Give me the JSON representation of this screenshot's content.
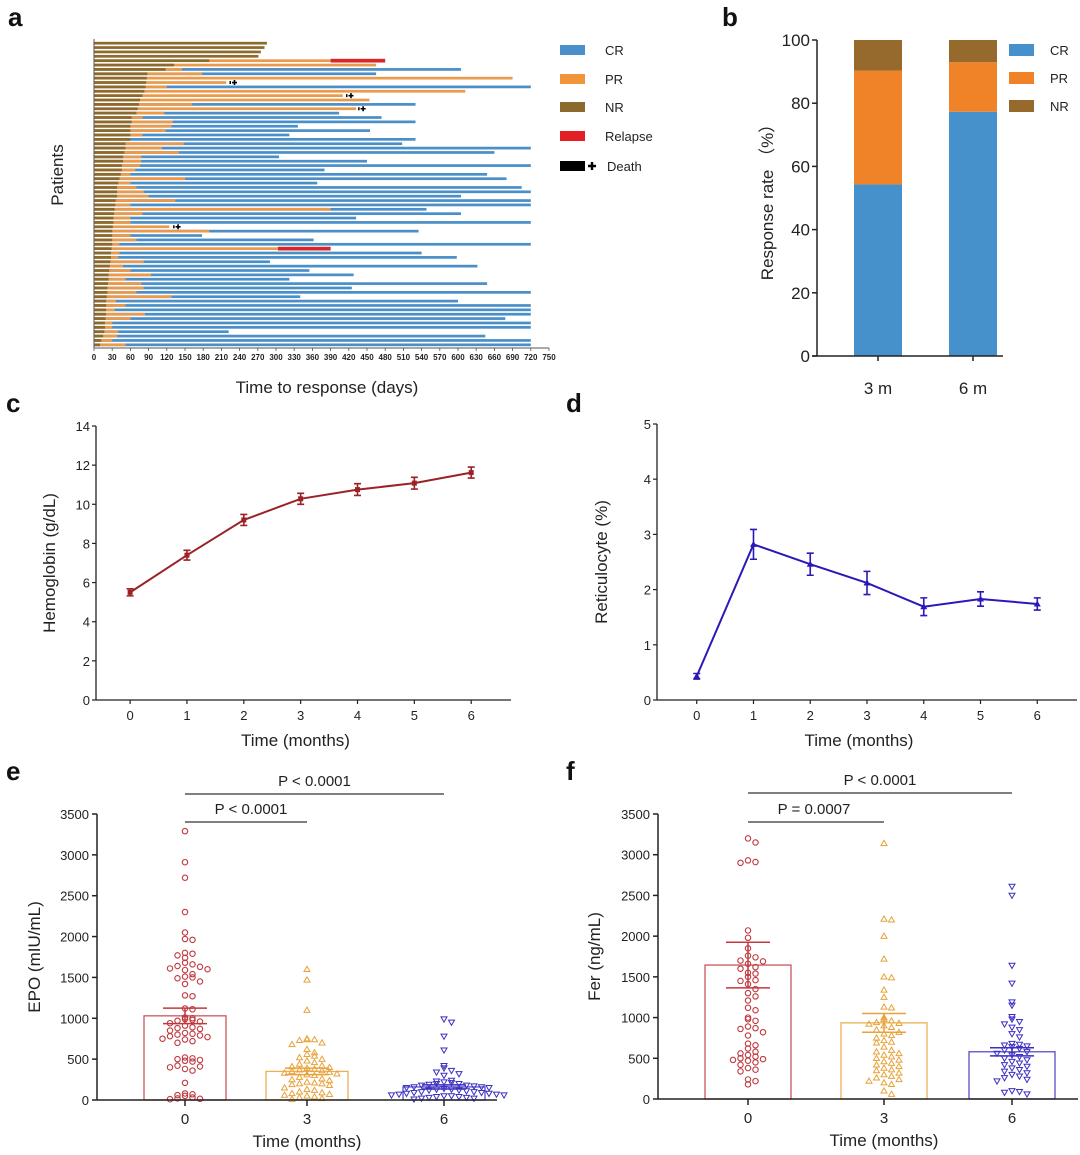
{
  "figure": {
    "panel_labels": [
      "a",
      "b",
      "c",
      "d",
      "e",
      "f"
    ]
  },
  "chart_data": [
    {
      "panel": "a",
      "type": "bar",
      "subtype": "swimmer",
      "title": "",
      "xlabel": "Time to response (days)",
      "ylabel": "Patients",
      "xlim": [
        0,
        750
      ],
      "xticks": [
        0,
        30,
        60,
        90,
        120,
        150,
        180,
        210,
        240,
        270,
        300,
        330,
        360,
        390,
        420,
        450,
        480,
        510,
        540,
        570,
        600,
        630,
        660,
        690,
        720,
        750
      ],
      "legend": {
        "placement": "right",
        "items": [
          {
            "label": "CR",
            "color": "#4b8fc8"
          },
          {
            "label": "PR",
            "color": "#f0953a"
          },
          {
            "label": "NR",
            "color": "#8c6a2e"
          },
          {
            "label": "Relapse",
            "color": "#e31e24"
          },
          {
            "label": "Death",
            "color": "#000000",
            "marker": "cross"
          }
        ]
      },
      "colors": {
        "CR": "#4b8fc8",
        "PR": "#ea9a4a",
        "NR": "#8c6a2e",
        "Relapse": "#d9262b",
        "Death": "#000000"
      },
      "patients": [
        {
          "nr": 285,
          "pr": 0,
          "cr": 0
        },
        {
          "nr": 281,
          "pr": 0,
          "cr": 0
        },
        {
          "nr": 275,
          "pr": 0,
          "cr": 0
        },
        {
          "nr": 271,
          "pr": 0,
          "cr": 0
        },
        {
          "nr": 190,
          "pr": 390,
          "cr": 0,
          "relapse_end": 480
        },
        {
          "nr": 132,
          "pr": 465,
          "cr": 0
        },
        {
          "nr": 118,
          "pr": 145,
          "cr": 605
        },
        {
          "nr": 88,
          "pr": 178,
          "cr": 465
        },
        {
          "nr": 87,
          "pr": 690,
          "cr": 0
        },
        {
          "nr": 86,
          "pr": 218,
          "cr": 0,
          "death": 225
        },
        {
          "nr": 85,
          "pr": 120,
          "cr": 720
        },
        {
          "nr": 83,
          "pr": 612,
          "cr": 0
        },
        {
          "nr": 80,
          "pr": 410,
          "cr": 0,
          "death": 417
        },
        {
          "nr": 76,
          "pr": 454,
          "cr": 0
        },
        {
          "nr": 74,
          "pr": 162,
          "cr": 530
        },
        {
          "nr": 72,
          "pr": 432,
          "cr": 0,
          "death": 437
        },
        {
          "nr": 70,
          "pr": 116,
          "cr": 404
        },
        {
          "nr": 62,
          "pr": 80,
          "cr": 474
        },
        {
          "nr": 62,
          "pr": 130,
          "cr": 530
        },
        {
          "nr": 60,
          "pr": 128,
          "cr": 336
        },
        {
          "nr": 60,
          "pr": 118,
          "cr": 455
        },
        {
          "nr": 60,
          "pr": 80,
          "cr": 322
        },
        {
          "nr": 60,
          "pr": 60,
          "cr": 530
        },
        {
          "nr": 52,
          "pr": 148,
          "cr": 508
        },
        {
          "nr": 52,
          "pr": 112,
          "cr": 720
        },
        {
          "nr": 50,
          "pr": 140,
          "cr": 660
        },
        {
          "nr": 48,
          "pr": 78,
          "cr": 305
        },
        {
          "nr": 48,
          "pr": 78,
          "cr": 450
        },
        {
          "nr": 46,
          "pr": 76,
          "cr": 720
        },
        {
          "nr": 46,
          "pr": 68,
          "cr": 380
        },
        {
          "nr": 44,
          "pr": 60,
          "cr": 648
        },
        {
          "nr": 42,
          "pr": 150,
          "cr": 680
        },
        {
          "nr": 40,
          "pr": 60,
          "cr": 368
        },
        {
          "nr": 38,
          "pr": 70,
          "cr": 705
        },
        {
          "nr": 38,
          "pr": 82,
          "cr": 720
        },
        {
          "nr": 38,
          "pr": 90,
          "cr": 605
        },
        {
          "nr": 36,
          "pr": 134,
          "cr": 720
        },
        {
          "nr": 35,
          "pr": 60,
          "cr": 720
        },
        {
          "nr": 34,
          "pr": 390,
          "cr": 548
        },
        {
          "nr": 33,
          "pr": 80,
          "cr": 605
        },
        {
          "nr": 32,
          "pr": 60,
          "cr": 432
        },
        {
          "nr": 32,
          "pr": 60,
          "cr": 720
        },
        {
          "nr": 31,
          "pr": 124,
          "cr": 0,
          "death": 132
        },
        {
          "nr": 30,
          "pr": 190,
          "cr": 535
        },
        {
          "nr": 30,
          "pr": 60,
          "cr": 178
        },
        {
          "nr": 30,
          "pr": 70,
          "cr": 362
        },
        {
          "nr": 30,
          "pr": 42,
          "cr": 720
        },
        {
          "nr": 29,
          "pr": 303,
          "cr": 0,
          "relapse_end": 390
        },
        {
          "nr": 28,
          "pr": 42,
          "cr": 540
        },
        {
          "nr": 28,
          "pr": 40,
          "cr": 598
        },
        {
          "nr": 27,
          "pr": 82,
          "cr": 290
        },
        {
          "nr": 26,
          "pr": 48,
          "cr": 632
        },
        {
          "nr": 25,
          "pr": 60,
          "cr": 355
        },
        {
          "nr": 24,
          "pr": 94,
          "cr": 428
        },
        {
          "nr": 24,
          "pr": 52,
          "cr": 322
        },
        {
          "nr": 23,
          "pr": 78,
          "cr": 648
        },
        {
          "nr": 22,
          "pr": 82,
          "cr": 425
        },
        {
          "nr": 22,
          "pr": 70,
          "cr": 720
        },
        {
          "nr": 21,
          "pr": 128,
          "cr": 340
        },
        {
          "nr": 20,
          "pr": 36,
          "cr": 600
        },
        {
          "nr": 20,
          "pr": 52,
          "cr": 720
        },
        {
          "nr": 20,
          "pr": 34,
          "cr": 720
        },
        {
          "nr": 20,
          "pr": 84,
          "cr": 720
        },
        {
          "nr": 19,
          "pr": 60,
          "cr": 678
        },
        {
          "nr": 18,
          "pr": 30,
          "cr": 720
        },
        {
          "nr": 18,
          "pr": 30,
          "cr": 720
        },
        {
          "nr": 17,
          "pr": 40,
          "cr": 222
        },
        {
          "nr": 15,
          "pr": 38,
          "cr": 645
        },
        {
          "nr": 12,
          "pr": 30,
          "cr": 720
        },
        {
          "nr": 10,
          "pr": 52,
          "cr": 720
        }
      ]
    },
    {
      "panel": "b",
      "type": "bar",
      "subtype": "stacked",
      "title": "",
      "xlabel": "",
      "ylabel": "Response rate （%）",
      "ylim": [
        0,
        100
      ],
      "yticks": [
        0,
        20,
        40,
        60,
        80,
        100
      ],
      "categories": [
        "3 m",
        "6 m"
      ],
      "series": [
        {
          "name": "CR",
          "color": "#4690cc",
          "values": [
            54.3,
            77.3
          ]
        },
        {
          "name": "PR",
          "color": "#f08327",
          "values": [
            36.0,
            15.7
          ]
        },
        {
          "name": "NR",
          "color": "#956a2c",
          "values": [
            9.7,
            7.0
          ]
        }
      ],
      "legend": {
        "placement": "top-right"
      }
    },
    {
      "panel": "c",
      "type": "line",
      "title": "",
      "xlabel": "Time (months)",
      "ylabel": "Hemoglobin (g/dL)",
      "xlim": [
        -0.6,
        6.7
      ],
      "ylim": [
        0,
        14
      ],
      "xticks": [
        0,
        1,
        2,
        3,
        4,
        5,
        6
      ],
      "yticks": [
        0,
        2,
        4,
        6,
        8,
        10,
        12,
        14
      ],
      "color": "#9b2226",
      "marker": "square",
      "series": [
        {
          "name": "Hemoglobin",
          "x": [
            0,
            1,
            2,
            3,
            4,
            5,
            6
          ],
          "y": [
            5.5,
            7.4,
            9.2,
            10.28,
            10.75,
            11.08,
            11.62
          ],
          "err": [
            0.18,
            0.25,
            0.28,
            0.28,
            0.3,
            0.3,
            0.28
          ]
        }
      ]
    },
    {
      "panel": "d",
      "type": "line",
      "title": "",
      "xlabel": "Time (months)",
      "ylabel": "Reticulocyte (%)",
      "xlim": [
        -0.7,
        6.7
      ],
      "ylim": [
        0,
        5
      ],
      "xticks": [
        0,
        1,
        2,
        3,
        4,
        5,
        6
      ],
      "yticks": [
        0,
        1,
        2,
        3,
        4,
        5
      ],
      "color": "#2a19b8",
      "marker": "triangle",
      "series": [
        {
          "name": "Reticulocyte",
          "x": [
            0,
            1,
            2,
            3,
            4,
            5,
            6
          ],
          "y": [
            0.43,
            2.82,
            2.46,
            2.12,
            1.69,
            1.83,
            1.74
          ],
          "err": [
            0.05,
            0.27,
            0.2,
            0.21,
            0.16,
            0.13,
            0.11
          ]
        }
      ]
    },
    {
      "panel": "e",
      "type": "scatter",
      "subtype": "bar-dot",
      "title": "",
      "xlabel": "Time (months)",
      "ylabel": "EPO (mIU/mL)",
      "ylim": [
        0,
        3500
      ],
      "yticks": [
        0,
        500,
        1000,
        1500,
        2000,
        2500,
        3000,
        3500
      ],
      "categories": [
        "0",
        "3",
        "6"
      ],
      "groups": [
        {
          "name": "0",
          "color": "#c0393f",
          "marker": "circle",
          "mean": 1030,
          "sem": 95,
          "points": [
            3290,
            2910,
            2720,
            2300,
            2050,
            1970,
            1960,
            1800,
            1790,
            1770,
            1740,
            1680,
            1660,
            1640,
            1630,
            1610,
            1600,
            1590,
            1540,
            1510,
            1500,
            1490,
            1450,
            1420,
            1280,
            1270,
            1120,
            1110,
            1010,
            1000,
            990,
            980,
            970,
            960,
            940,
            910,
            890,
            880,
            870,
            850,
            820,
            810,
            800,
            790,
            780,
            770,
            750,
            740,
            720,
            700,
            520,
            510,
            500,
            490,
            480,
            470,
            420,
            410,
            400,
            380,
            360,
            210,
            80,
            70,
            60,
            50,
            30,
            20,
            15,
            10
          ]
        },
        {
          "name": "3",
          "color": "#e8a23a",
          "marker": "triangle",
          "mean": 350,
          "sem": 40,
          "points": [
            1600,
            1470,
            1100,
            750,
            740,
            740,
            730,
            700,
            680,
            620,
            580,
            560,
            540,
            520,
            500,
            480,
            460,
            440,
            420,
            410,
            400,
            390,
            380,
            370,
            360,
            350,
            340,
            330,
            320,
            310,
            300,
            280,
            260,
            250,
            240,
            220,
            210,
            200,
            200,
            190,
            180,
            150,
            130,
            120,
            100,
            90,
            80,
            70,
            60,
            50,
            40,
            30,
            20,
            10
          ]
        },
        {
          "name": "6",
          "color": "#3b2fc0",
          "marker": "triangle-down",
          "mean": 160,
          "sem": 25,
          "points": [
            990,
            950,
            780,
            610,
            420,
            390,
            360,
            340,
            320,
            300,
            240,
            230,
            220,
            210,
            200,
            200,
            190,
            180,
            180,
            170,
            160,
            160,
            150,
            150,
            140,
            130,
            130,
            120,
            120,
            110,
            100,
            100,
            90,
            90,
            80,
            80,
            70,
            70,
            60,
            60,
            50,
            50,
            40,
            40,
            30,
            30,
            20,
            20,
            10
          ]
        }
      ],
      "comparisons": [
        {
          "from": "0",
          "to": "6",
          "label": "P < 0.0001"
        },
        {
          "from": "0",
          "to": "3",
          "label": "P < 0.0001"
        }
      ]
    },
    {
      "panel": "f",
      "type": "scatter",
      "subtype": "bar-dot",
      "title": "",
      "xlabel": "Time (months)",
      "ylabel": "Fer (ng/mL)",
      "ylim": [
        0,
        3500
      ],
      "yticks": [
        0,
        500,
        1000,
        1500,
        2000,
        2500,
        3000,
        3500
      ],
      "categories": [
        "0",
        "3",
        "6"
      ],
      "groups": [
        {
          "name": "0",
          "color": "#c0393f",
          "marker": "circle",
          "mean": 1645,
          "sem": 280,
          "points": [
            3200,
            3150,
            2930,
            2910,
            2900,
            2070,
            1980,
            1850,
            1760,
            1740,
            1700,
            1690,
            1660,
            1620,
            1600,
            1550,
            1540,
            1500,
            1460,
            1450,
            1410,
            1350,
            1300,
            1260,
            1210,
            1120,
            1090,
            1000,
            980,
            960,
            890,
            870,
            860,
            820,
            780,
            680,
            660,
            620,
            580,
            560,
            540,
            520,
            500,
            490,
            480,
            470,
            450,
            420,
            380,
            360,
            340,
            240,
            220,
            180
          ]
        },
        {
          "name": "3",
          "color": "#e8a23a",
          "marker": "triangle",
          "mean": 935,
          "sem": 115,
          "points": [
            3140,
            2210,
            2200,
            2000,
            1720,
            1500,
            1490,
            1340,
            1250,
            1130,
            1120,
            1000,
            980,
            960,
            940,
            930,
            920,
            900,
            880,
            850,
            820,
            800,
            780,
            750,
            720,
            700,
            690,
            640,
            600,
            580,
            560,
            540,
            520,
            500,
            480,
            460,
            440,
            420,
            400,
            380,
            360,
            350,
            320,
            300,
            280,
            260,
            240,
            220,
            200,
            180,
            100,
            60
          ]
        },
        {
          "name": "6",
          "color": "#3b2fc0",
          "marker": "triangle-down",
          "mean": 580,
          "sem": 50,
          "points": [
            2610,
            2500,
            1640,
            1420,
            1190,
            1150,
            1010,
            980,
            950,
            920,
            880,
            850,
            800,
            760,
            680,
            670,
            660,
            650,
            640,
            620,
            600,
            580,
            560,
            540,
            520,
            500,
            480,
            460,
            440,
            420,
            400,
            380,
            360,
            340,
            320,
            300,
            280,
            260,
            240,
            220,
            100,
            90,
            80,
            60
          ]
        }
      ],
      "comparisons": [
        {
          "from": "0",
          "to": "6",
          "label": "P < 0.0001"
        },
        {
          "from": "0",
          "to": "3",
          "label": "P = 0.0007"
        }
      ]
    }
  ]
}
